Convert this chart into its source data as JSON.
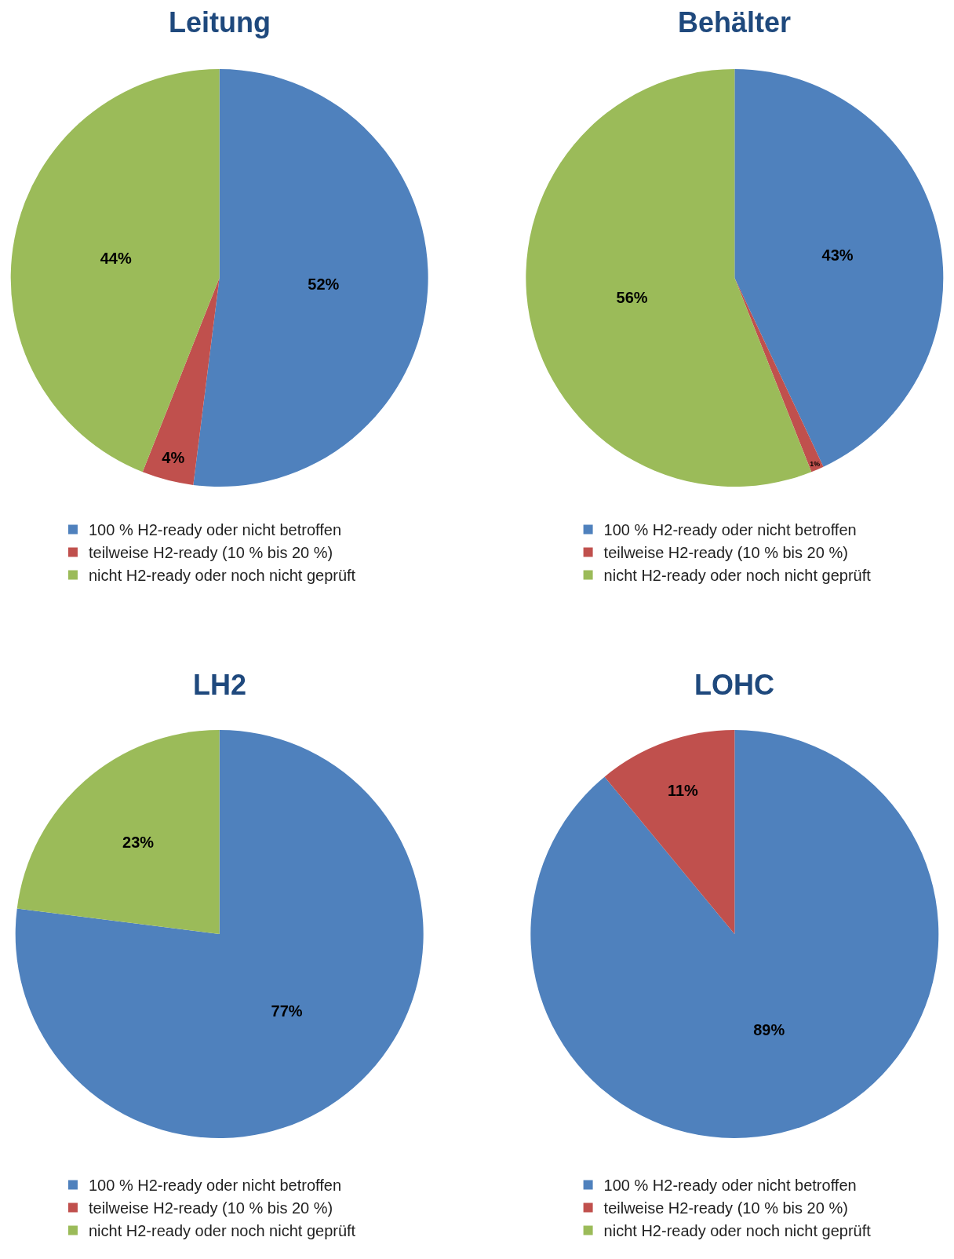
{
  "chart_data": [
    {
      "type": "pie",
      "title": "Leitung",
      "categories": [
        "100 % H2-ready oder nicht betroffen",
        "teilweise H2-ready (10 % bis 20 %)",
        "nicht H2-ready oder noch nicht geprüft"
      ],
      "values": [
        52,
        4,
        44
      ],
      "colors": [
        "#4f81bd",
        "#c0504d",
        "#9bbb59"
      ],
      "value_labels": [
        "52%",
        "4%",
        "44%"
      ],
      "legend": "bottom"
    },
    {
      "type": "pie",
      "title": "Behälter",
      "categories": [
        "100 % H2-ready oder nicht betroffen",
        "teilweise H2-ready (10 % bis 20 %)",
        "nicht H2-ready oder noch nicht geprüft"
      ],
      "values": [
        43,
        1,
        56
      ],
      "colors": [
        "#4f81bd",
        "#c0504d",
        "#9bbb59"
      ],
      "value_labels": [
        "43%",
        "1%",
        "56%"
      ],
      "legend": "bottom"
    },
    {
      "type": "pie",
      "title": "LH2",
      "categories": [
        "100 % H2-ready oder nicht betroffen",
        "teilweise H2-ready (10 % bis 20 %)",
        "nicht H2-ready oder noch nicht geprüft"
      ],
      "values": [
        77,
        0,
        23
      ],
      "colors": [
        "#4f81bd",
        "#c0504d",
        "#9bbb59"
      ],
      "value_labels": [
        "77%",
        null,
        "23%"
      ],
      "legend": "bottom"
    },
    {
      "type": "pie",
      "title": "LOHC",
      "categories": [
        "100 % H2-ready oder nicht betroffen",
        "teilweise H2-ready (10 % bis 20 %)",
        "nicht H2-ready oder noch nicht geprüft"
      ],
      "values": [
        89,
        11,
        0
      ],
      "colors": [
        "#4f81bd",
        "#c0504d",
        "#9bbb59"
      ],
      "value_labels": [
        "89%",
        "11%",
        null
      ],
      "legend": "bottom"
    }
  ]
}
